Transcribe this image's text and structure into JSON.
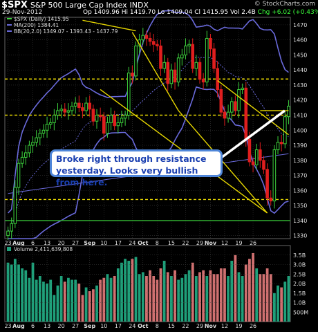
{
  "header": {
    "symbol": "$SPX",
    "name": "S&P 500 Large Cap Index",
    "exchange": "INDX",
    "date": "29-Nov-2012",
    "ohlc": "Op 1409.96  Hi 1419.70  Lo 1409.04  Cl 1415.95  Vol 2.4B",
    "change": "Chg +6.02 (+0.43%)",
    "brand": "© StockCharts.com",
    "legend_price": "$SPX (Daily) 1415.95",
    "legend_ma": "MA(200) 1384.41",
    "legend_bb": "BB(20,2.0) 1349.07 - 1393.43 - 1437.79",
    "legend_volume": "Volume 2,411,639,808"
  },
  "annotation": {
    "line1": "Broke right through resistance",
    "line2": "yesterday. Looks very bullish from here."
  },
  "colors": {
    "background": "#000000",
    "up": "#3cd23c",
    "down": "#e01e1e",
    "bollinger": "#6a6adc",
    "ma200": "#6a6adc",
    "trendline": "#e8d800",
    "volume_up": "#1fa07a",
    "volume_down": "#d07070",
    "grid": "#444444"
  },
  "chart_data": [
    {
      "type": "candlestick",
      "title": "$SPX S&P 500 Large Cap Index",
      "ylim": [
        1328,
        1475
      ],
      "y_ticks": [
        1330,
        1340,
        1350,
        1360,
        1370,
        1380,
        1390,
        1400,
        1410,
        1420,
        1430,
        1440,
        1450,
        1460,
        1470
      ],
      "x_tick_labels": [
        "23",
        "Aug",
        "6",
        "13",
        "20",
        "27",
        "Sep",
        "10",
        "17",
        "24",
        "Oct",
        "8",
        "15",
        "22",
        "29",
        "Nov",
        "12",
        "19",
        "26"
      ],
      "closes": [
        1333,
        1338,
        1362,
        1378,
        1382,
        1385,
        1390,
        1392,
        1395,
        1398,
        1400,
        1404,
        1405,
        1410,
        1413,
        1414,
        1412,
        1413,
        1416,
        1418,
        1415,
        1413,
        1418,
        1414,
        1406,
        1410,
        1409,
        1398,
        1405,
        1410,
        1403,
        1405,
        1408,
        1410,
        1438,
        1436,
        1456,
        1460,
        1463,
        1461,
        1459,
        1457,
        1456,
        1441,
        1445,
        1431,
        1440,
        1432,
        1448,
        1450,
        1456,
        1457,
        1441,
        1445,
        1434,
        1432,
        1461,
        1454,
        1441,
        1427,
        1412,
        1408,
        1412,
        1419,
        1413,
        1427,
        1428,
        1394,
        1379,
        1377,
        1387,
        1380,
        1374,
        1355,
        1353,
        1387,
        1392,
        1391,
        1409,
        1416
      ],
      "horizontal_lines": [
        1434,
        1410,
        1354,
        1340
      ],
      "series": [
        {
          "name": "$SPX (Daily)",
          "last": 1415.95
        },
        {
          "name": "MA(200)",
          "last": 1384.41
        },
        {
          "name": "BB(20,2.0)",
          "values_last": [
            1349.07,
            1393.43,
            1437.79
          ]
        }
      ]
    },
    {
      "type": "bar",
      "title": "Volume",
      "ylim": [
        0,
        4.0
      ],
      "y_ticks": [
        "500M",
        "1.0B",
        "1.5B",
        "2.0B",
        "2.5B",
        "3.0B",
        "3.5B"
      ],
      "units": "billions of shares",
      "values": [
        3.1,
        3.0,
        3.3,
        3.0,
        2.8,
        2.7,
        2.3,
        3.1,
        2.2,
        2.4,
        2.1,
        2.0,
        2.2,
        1.4,
        1.9,
        2.4,
        2.1,
        2.3,
        2.2,
        2.2,
        2.0,
        1.4,
        1.8,
        1.6,
        1.7,
        1.9,
        2.2,
        2.3,
        2.5,
        2.3,
        2.4,
        2.8,
        3.1,
        3.3,
        3.2,
        3.3,
        3.4,
        2.5,
        2.6,
        2.4,
        2.7,
        2.4,
        2.2,
        2.8,
        3.2,
        2.6,
        2.4,
        2.7,
        2.2,
        2.3,
        2.5,
        2.7,
        3.1,
        2.4,
        2.6,
        2.7,
        2.4,
        2.7,
        2.5,
        2.5,
        2.8,
        2.8,
        2.4,
        3.2,
        3.5,
        2.6,
        2.4,
        3.0,
        3.3,
        3.6,
        2.8,
        2.5,
        2.5,
        2.8,
        2.5,
        1.5,
        1.9,
        1.8,
        2.1,
        2.4
      ]
    }
  ]
}
